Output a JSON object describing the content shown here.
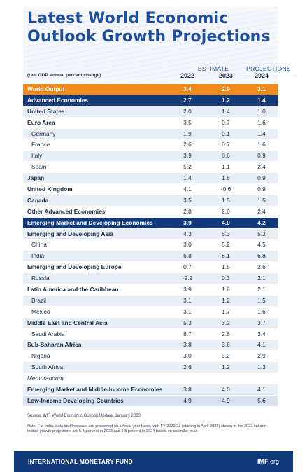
{
  "title_line1": "Latest World Economic",
  "title_line2": "Outlook Growth Projections",
  "header_estimate": "ESTIMATE",
  "header_projections": "PROJECTIONS",
  "subnote": "(real GDP, annual percent change)",
  "years": [
    "2022",
    "2023",
    "2024"
  ],
  "rows": [
    {
      "label": "World Output",
      "v": [
        "3.4",
        "2.9",
        "3.1"
      ]
    },
    {
      "label": "Advanced Economies",
      "v": [
        "2.7",
        "1.2",
        "1.4"
      ]
    },
    {
      "label": "United States",
      "v": [
        "2.0",
        "1.4",
        "1.0"
      ]
    },
    {
      "label": "Euro Area",
      "v": [
        "3.5",
        "0.7",
        "1.6"
      ]
    },
    {
      "label": "Germany",
      "v": [
        "1.9",
        "0.1",
        "1.4"
      ]
    },
    {
      "label": "France",
      "v": [
        "2.6",
        "0.7",
        "1.6"
      ]
    },
    {
      "label": "Italy",
      "v": [
        "3.9",
        "0.6",
        "0.9"
      ]
    },
    {
      "label": "Spain",
      "v": [
        "5.2",
        "1.1",
        "2.4"
      ]
    },
    {
      "label": "Japan",
      "v": [
        "1.4",
        "1.8",
        "0.9"
      ]
    },
    {
      "label": "United Kingdom",
      "v": [
        "4.1",
        "-0.6",
        "0.9"
      ]
    },
    {
      "label": "Canada",
      "v": [
        "3.5",
        "1.5",
        "1.5"
      ]
    },
    {
      "label": "Other Advanced Economies",
      "v": [
        "2.8",
        "2.0",
        "2.4"
      ]
    },
    {
      "label": "Emerging Market and Developing Economies",
      "v": [
        "3.9",
        "4.0",
        "4.2"
      ]
    },
    {
      "label": "Emerging and Developing Asia",
      "v": [
        "4.3",
        "5.3",
        "5.2"
      ]
    },
    {
      "label": "China",
      "v": [
        "3.0",
        "5.2",
        "4.5"
      ]
    },
    {
      "label": "India",
      "v": [
        "6.8",
        "6.1",
        "6.8"
      ]
    },
    {
      "label": "Emerging and Developing Europe",
      "v": [
        "0.7",
        "1.5",
        "2.6"
      ]
    },
    {
      "label": "Russia",
      "v": [
        "-2.2",
        "0.3",
        "2.1"
      ]
    },
    {
      "label": "Latin America and the Caribbean",
      "v": [
        "3.9",
        "1.8",
        "2.1"
      ]
    },
    {
      "label": "Brazil",
      "v": [
        "3.1",
        "1.2",
        "1.5"
      ]
    },
    {
      "label": "Mexico",
      "v": [
        "3.1",
        "1.7",
        "1.6"
      ]
    },
    {
      "label": "Middle East and Central Asia",
      "v": [
        "5.3",
        "3.2",
        "3.7"
      ]
    },
    {
      "label": "Saudi Arabia",
      "v": [
        "8.7",
        "2.6",
        "3.4"
      ]
    },
    {
      "label": "Sub-Saharan Africa",
      "v": [
        "3.8",
        "3.8",
        "4.1"
      ]
    },
    {
      "label": "Nigeria",
      "v": [
        "3.0",
        "3.2",
        "2.9"
      ]
    },
    {
      "label": "South Africa",
      "v": [
        "2.6",
        "1.2",
        "1.3"
      ]
    },
    {
      "label": "Memorandum",
      "v": [
        "",
        "",
        ""
      ]
    },
    {
      "label": "Emerging Market and Middle-Income Economies",
      "v": [
        "3.8",
        "4.0",
        "4.1"
      ]
    },
    {
      "label": "Low-Income Developing Countries",
      "v": [
        "4.9",
        "4.9",
        "5.6"
      ]
    }
  ],
  "source": "Source: IMF, World Economic Outlook Update, January 2023",
  "note": "Note: For India, data and forecasts are presented on a fiscal year basis, with FY 2022/23 (starting in April 2022) shown in the 2022 column. India's growth projections are 5.4 percent in 2023 and 6.8 percent in 2024 based on calendar year.",
  "footer_left": "INTERNATIONAL MONETARY FUND",
  "footer_right_main": "IMF",
  "footer_right_suffix": ".org"
}
